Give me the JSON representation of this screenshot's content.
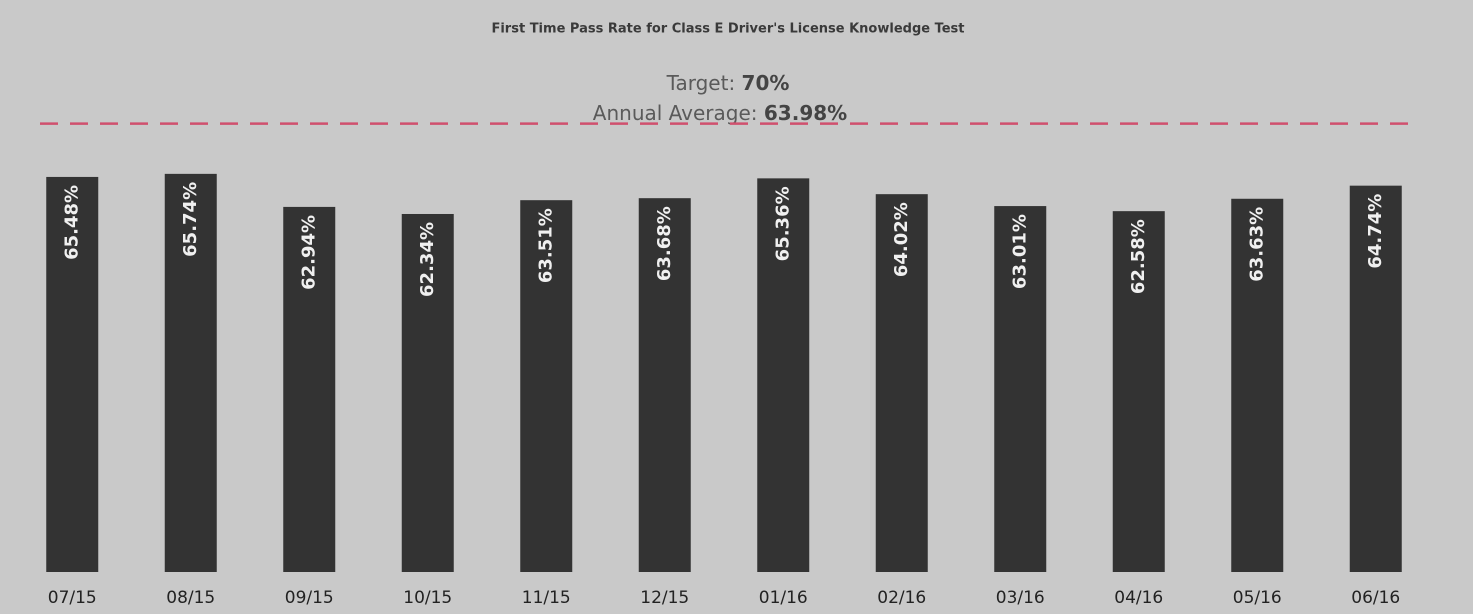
{
  "chart_data": {
    "type": "bar",
    "title": "First Time Pass Rate for Class E Driver's License Knowledge Test",
    "categories": [
      "07/15",
      "08/15",
      "09/15",
      "10/15",
      "11/15",
      "12/15",
      "01/16",
      "02/16",
      "03/16",
      "04/16",
      "05/16",
      "06/16"
    ],
    "values": [
      65.48,
      65.74,
      62.94,
      62.34,
      63.51,
      63.68,
      65.36,
      64.02,
      63.01,
      62.58,
      63.63,
      64.74
    ],
    "value_labels": [
      "65.48%",
      "65.74%",
      "62.94%",
      "62.34%",
      "63.51%",
      "63.68%",
      "65.36%",
      "64.02%",
      "63.01%",
      "62.58%",
      "63.63%",
      "64.74%"
    ],
    "color": "#333333",
    "ylim": [
      32,
      72
    ],
    "annotations": [
      {
        "text": "Target:",
        "value": 70,
        "value_label": "70%",
        "color": "#d0506e"
      },
      {
        "text": "Annual Average:",
        "value": 63.98,
        "value_label": "63.98%"
      }
    ]
  }
}
